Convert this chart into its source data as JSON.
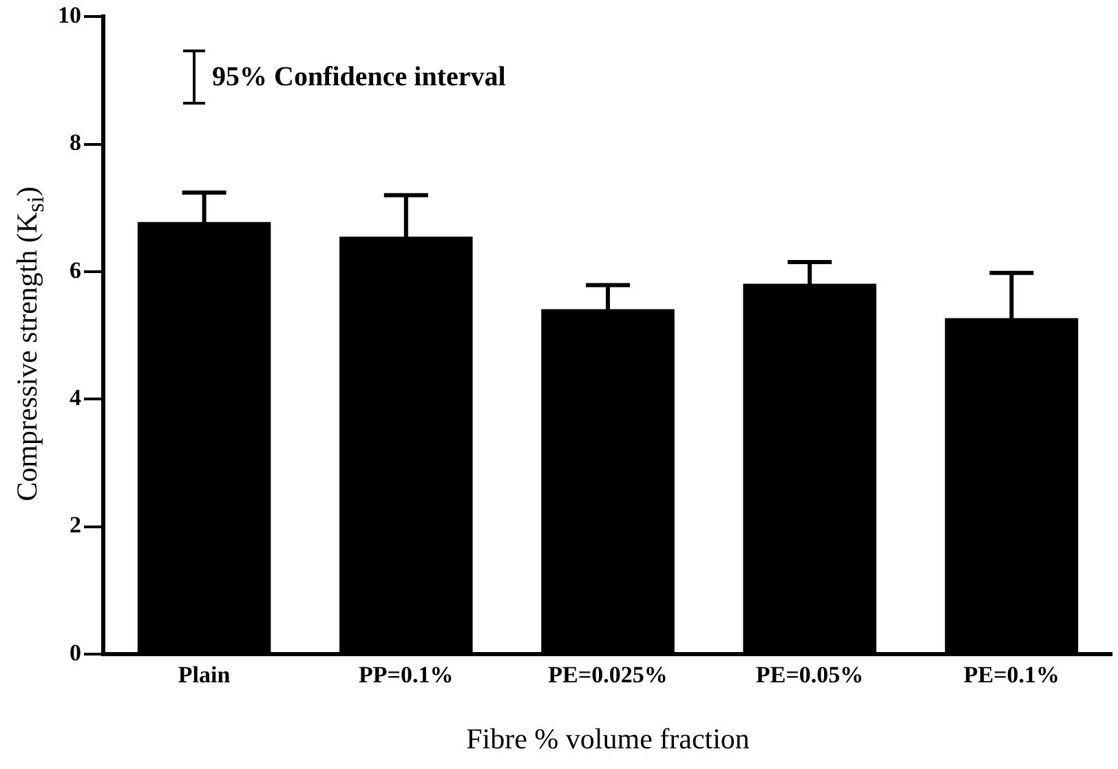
{
  "chart_data": {
    "type": "bar",
    "xlabel": "Fibre % volume fraction",
    "ylabel": "Compressive strength (K$_{si}$)",
    "annotations": [
      "95% Confidence interval"
    ],
    "categories": [
      "Plain",
      "PP=0.1%",
      "PE=0.025%",
      "PE=0.05%",
      "PE=0.1%"
    ],
    "values": [
      6.78,
      6.55,
      5.41,
      5.81,
      5.27
    ],
    "errors": [
      0.46,
      0.65,
      0.38,
      0.34,
      0.71
    ],
    "color": "#000000",
    "ylim": [
      0,
      10
    ],
    "yticks": [
      0,
      2,
      4,
      6,
      8,
      10
    ],
    "grid": false,
    "legend": false
  }
}
